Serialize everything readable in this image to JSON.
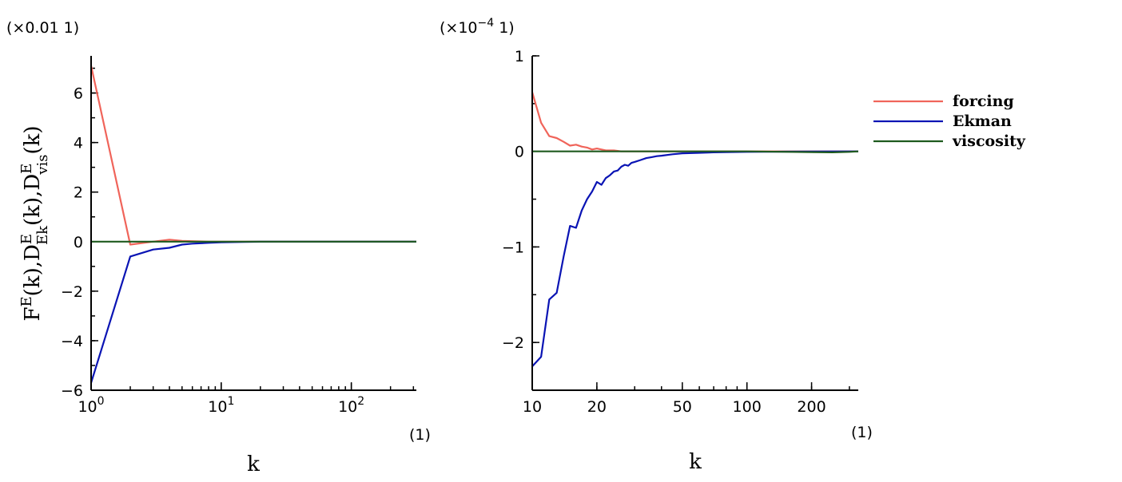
{
  "chart_data": [
    {
      "type": "line",
      "xscale": "log",
      "xlim": [
        1,
        316
      ],
      "ylim": [
        -6,
        7.5
      ],
      "y_multiplier_label": "(×0.01  1)",
      "x_unit_label": "(1)",
      "xlabel": "k",
      "ylabel": "F^E(k),D^E_Ek(k),D^E_vis(k)",
      "ylabel_parts": {
        "F": "F",
        "E": "E",
        "k": "(k),D",
        "Ek": "Ek",
        "vis": "vis",
        "end": "(k)"
      },
      "yticks": [
        -6,
        -4,
        -2,
        0,
        2,
        4,
        6
      ],
      "ytick_labels": [
        "−6",
        "−4",
        "−2",
        "0",
        "2",
        "4",
        "6"
      ],
      "xticks": [
        1,
        10,
        100
      ],
      "xtick_labels": [
        {
          "base": "10",
          "exp": "0"
        },
        {
          "base": "10",
          "exp": "1"
        },
        {
          "base": "10",
          "exp": "2"
        }
      ],
      "grid": false,
      "series": [
        {
          "name": "forcing",
          "color": "#f0645a",
          "x": [
            1,
            2,
            3,
            4,
            5,
            6,
            8,
            10,
            20,
            50,
            100,
            316
          ],
          "y": [
            7.1,
            -0.12,
            0.0,
            0.08,
            0.03,
            0.02,
            0.0,
            0.0,
            0.0,
            0.0,
            0.0,
            0.0
          ]
        },
        {
          "name": "Ekman",
          "color": "#0a14b4",
          "x": [
            1,
            2,
            3,
            4,
            5,
            6,
            8,
            10,
            15,
            20,
            30,
            50,
            100,
            316
          ],
          "y": [
            -5.7,
            -0.6,
            -0.32,
            -0.25,
            -0.12,
            -0.08,
            -0.05,
            -0.03,
            -0.01,
            -0.005,
            0.0,
            0.0,
            0.0,
            0.0
          ]
        },
        {
          "name": "viscosity",
          "color": "#1e5a1e",
          "x": [
            1,
            10,
            100,
            316
          ],
          "y": [
            0.0,
            0.0,
            0.0,
            0.0
          ]
        }
      ]
    },
    {
      "type": "line",
      "xscale": "log",
      "xlim": [
        10,
        330
      ],
      "ylim": [
        -2.5,
        1
      ],
      "y_multiplier_label": {
        "pre": "(×10",
        "exp": "−4",
        "post": "  1)"
      },
      "x_unit_label": "(1)",
      "xlabel": "k",
      "yticks": [
        -2,
        -1,
        0,
        1
      ],
      "ytick_labels": [
        "−2",
        "−1",
        "0",
        "1"
      ],
      "xticks": [
        10,
        20,
        50,
        100,
        200
      ],
      "xtick_labels": [
        "10",
        "20",
        "50",
        "100",
        "200"
      ],
      "grid": false,
      "legend": {
        "position": "right"
      },
      "series": [
        {
          "name": "forcing",
          "color": "#f0645a",
          "x": [
            10,
            11,
            12,
            13,
            14,
            15,
            16,
            17,
            18,
            19,
            20,
            21,
            22,
            24,
            26,
            30,
            40,
            60,
            100,
            200,
            330
          ],
          "y": [
            0.62,
            0.3,
            0.16,
            0.14,
            0.1,
            0.06,
            0.07,
            0.05,
            0.04,
            0.02,
            0.03,
            0.02,
            0.01,
            0.01,
            0.0,
            0.0,
            0.0,
            0.0,
            0.0,
            0.0,
            0.0
          ]
        },
        {
          "name": "Ekman",
          "color": "#0a14b4",
          "x": [
            10,
            11,
            12,
            13,
            14,
            15,
            16,
            17,
            18,
            19,
            20,
            21,
            22,
            23,
            24,
            25,
            26,
            27,
            28,
            29,
            30,
            32,
            34,
            36,
            38,
            40,
            45,
            50,
            60,
            70,
            80,
            100,
            150,
            200,
            330
          ],
          "y": [
            -2.25,
            -2.15,
            -1.55,
            -1.48,
            -1.1,
            -0.78,
            -0.8,
            -0.62,
            -0.5,
            -0.42,
            -0.32,
            -0.35,
            -0.28,
            -0.25,
            -0.21,
            -0.2,
            -0.16,
            -0.14,
            -0.15,
            -0.12,
            -0.11,
            -0.09,
            -0.07,
            -0.06,
            -0.05,
            -0.045,
            -0.03,
            -0.02,
            -0.015,
            -0.01,
            -0.008,
            -0.005,
            -0.002,
            -0.001,
            0.0
          ]
        },
        {
          "name": "viscosity",
          "color": "#1e5a1e",
          "x": [
            10,
            100,
            250,
            300,
            330
          ],
          "y": [
            0.0,
            0.0,
            -0.01,
            -0.005,
            0.0
          ]
        }
      ]
    }
  ]
}
